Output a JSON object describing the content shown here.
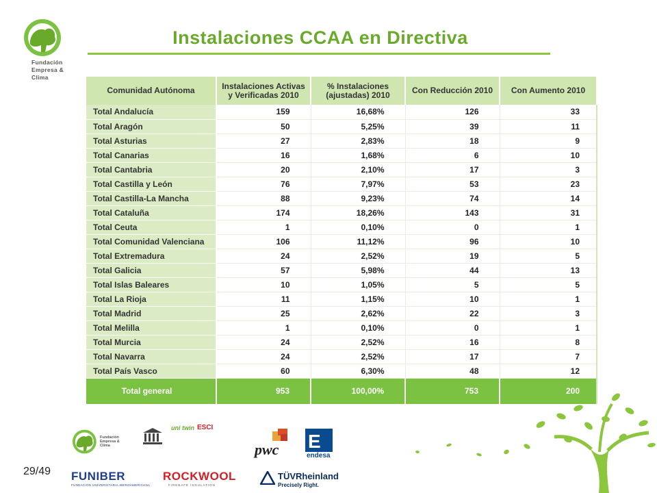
{
  "header": {
    "title": "Instalaciones CCAA en Directiva",
    "logo_lines": [
      "Fundación",
      "Empresa &",
      "Clima"
    ]
  },
  "table": {
    "columns": [
      "Comunidad Autónoma",
      "Instalaciones Activas y Verificadas 2010",
      "% Instalaciones (ajustadas) 2010",
      "Con Reducción 2010",
      "Con Aumento 2010"
    ],
    "rows": [
      [
        "Total Andalucía",
        "159",
        "16,68%",
        "126",
        "33"
      ],
      [
        "Total Aragón",
        "50",
        "5,25%",
        "39",
        "11"
      ],
      [
        "Total Asturias",
        "27",
        "2,83%",
        "18",
        "9"
      ],
      [
        "Total Canarias",
        "16",
        "1,68%",
        "6",
        "10"
      ],
      [
        "Total Cantabria",
        "20",
        "2,10%",
        "17",
        "3"
      ],
      [
        "Total Castilla y León",
        "76",
        "7,97%",
        "53",
        "23"
      ],
      [
        "Total Castilla-La Mancha",
        "88",
        "9,23%",
        "74",
        "14"
      ],
      [
        "Total Cataluña",
        "174",
        "18,26%",
        "143",
        "31"
      ],
      [
        "Total Ceuta",
        "1",
        "0,10%",
        "0",
        "1"
      ],
      [
        "Total Comunidad Valenciana",
        "106",
        "11,12%",
        "96",
        "10"
      ],
      [
        "Total Extremadura",
        "24",
        "2,52%",
        "19",
        "5"
      ],
      [
        "Total Galicia",
        "57",
        "5,98%",
        "44",
        "13"
      ],
      [
        "Total Islas Baleares",
        "10",
        "1,05%",
        "5",
        "5"
      ],
      [
        "Total La Rioja",
        "11",
        "1,15%",
        "10",
        "1"
      ],
      [
        "Total Madrid",
        "25",
        "2,62%",
        "22",
        "3"
      ],
      [
        "Total Melilla",
        "1",
        "0,10%",
        "0",
        "1"
      ],
      [
        "Total Murcia",
        "24",
        "2,52%",
        "16",
        "8"
      ],
      [
        "Total Navarra",
        "24",
        "2,52%",
        "17",
        "7"
      ],
      [
        "Total País Vasco",
        "60",
        "6,30%",
        "48",
        "12"
      ]
    ],
    "total": [
      "Total general",
      "953",
      "100,00%",
      "753",
      "200"
    ]
  },
  "footer": {
    "page_number": "29/49",
    "logos": {
      "fundacion": [
        "Fundación",
        "Empresa &",
        "Clima"
      ],
      "unitwin": "uni twin",
      "esci": "ESCI",
      "pwc": "pwc",
      "endesa": "endesa",
      "funiber": "FUNIBER",
      "funiber_sub": "FUNDACIÓN UNIVERSITARIA IBEROAMERICANA",
      "rockwool": "ROCKWOOL",
      "rockwool_sub": "FIREBAFE INSULATION",
      "tuv": "TÜVRheinland",
      "tuv_sub": "Precisely Right."
    }
  },
  "colors": {
    "accent": "#6aaa2a",
    "header_fill": "#cfe6b0",
    "name_fill": "#dbecc4",
    "total_fill": "#7cc242"
  }
}
